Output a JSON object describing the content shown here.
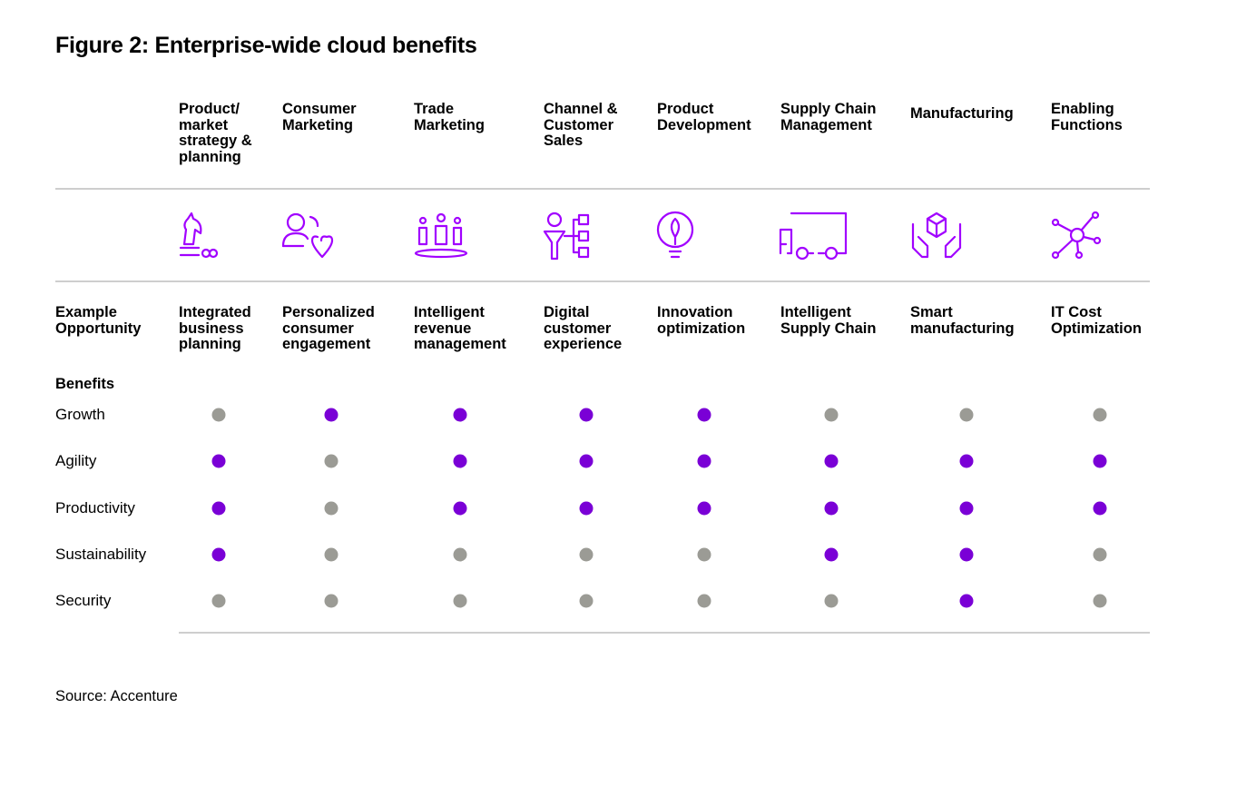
{
  "title": "Figure 2: Enterprise-wide cloud benefits",
  "columns": [
    "Product/\nmarket\nstrategy &\nplanning",
    "Consumer\nMarketing",
    "Trade\nMarketing",
    "Channel &\nCustomer\nSales",
    "Product\nDevelopment",
    "Supply Chain\nManagement",
    "Manufacturing",
    "Enabling\nFunctions"
  ],
  "opportunity": {
    "label": "Example\nOpportunity",
    "values": [
      "Integrated\nbusiness\nplanning",
      "Personalized\nconsumer\nengagement",
      "Intelligent\nrevenue\nmanagement",
      "Digital\ncustomer\nexperience",
      "Innovation\noptimization",
      "Intelligent\nSupply Chain",
      "Smart\nmanufacturing",
      "IT Cost\nOptimization"
    ]
  },
  "benefits": {
    "label": "Benefits",
    "rows": [
      {
        "name": "Growth",
        "highlighted": [
          false,
          true,
          true,
          true,
          true,
          false,
          false,
          false
        ]
      },
      {
        "name": "Agility",
        "highlighted": [
          true,
          false,
          true,
          true,
          true,
          true,
          true,
          true
        ]
      },
      {
        "name": "Productivity",
        "highlighted": [
          true,
          false,
          true,
          true,
          true,
          true,
          true,
          true
        ]
      },
      {
        "name": "Sustainability",
        "highlighted": [
          true,
          false,
          false,
          false,
          false,
          true,
          true,
          false
        ]
      },
      {
        "name": "Security",
        "highlighted": [
          false,
          false,
          false,
          false,
          false,
          false,
          true,
          false
        ]
      }
    ]
  },
  "colors": {
    "highlighted": "#7a00d6",
    "other": "#9b9b95"
  },
  "source": "Source: Accenture"
}
